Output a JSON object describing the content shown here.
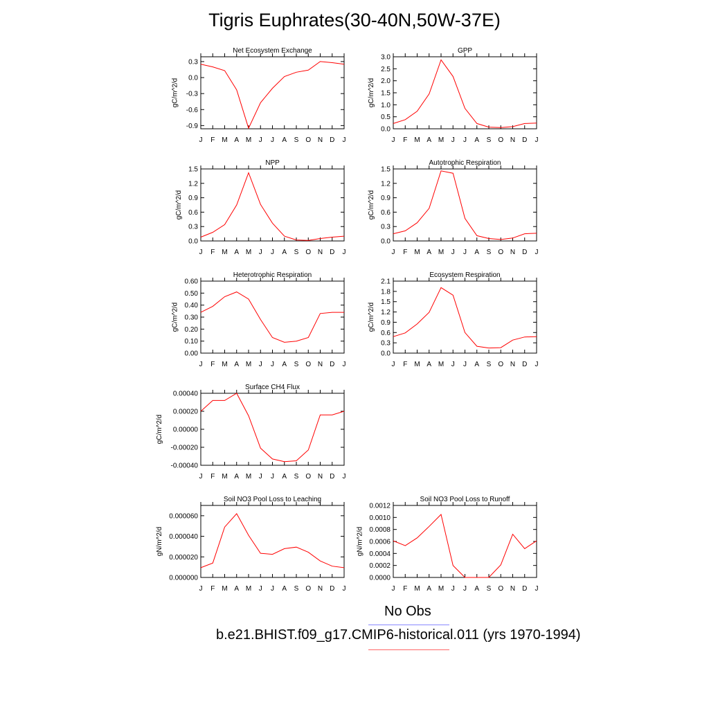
{
  "title": "Tigris Euphrates(30-40N,50W-37E)",
  "months": [
    "J",
    "F",
    "M",
    "A",
    "M",
    "J",
    "J",
    "A",
    "S",
    "O",
    "N",
    "D",
    "J"
  ],
  "line_color": "#ff0000",
  "legend": [
    {
      "label": "No Obs",
      "color": "#8888ff"
    },
    {
      "label": "b.e21.BHIST.f09_g17.CMIP6-historical.011 (yrs 1970-1994)",
      "color": "#ff6666"
    }
  ],
  "chart_data": [
    {
      "type": "line",
      "title": "Net Ecosystem Exchange",
      "ylabel": "gC/m^2/d",
      "ylim": [
        -0.96,
        0.39
      ],
      "yticks": [
        "0.3",
        "0.0",
        "-0.3",
        "-0.6",
        "-0.9"
      ],
      "ytick_values": [
        0.3,
        0.0,
        -0.3,
        -0.6,
        -0.9
      ],
      "values": [
        0.25,
        0.2,
        0.13,
        -0.23,
        -0.95,
        -0.47,
        -0.2,
        0.02,
        0.1,
        0.14,
        0.3,
        0.28,
        0.25
      ]
    },
    {
      "type": "line",
      "title": "GPP",
      "ylabel": "gC/m^2/d",
      "ylim": [
        0,
        3.0
      ],
      "yticks": [
        "3.0",
        "2.5",
        "2.0",
        "1.5",
        "1.0",
        "0.5",
        "0.0"
      ],
      "ytick_values": [
        3.0,
        2.5,
        2.0,
        1.5,
        1.0,
        0.5,
        0.0
      ],
      "values": [
        0.22,
        0.38,
        0.73,
        1.45,
        2.87,
        2.18,
        0.85,
        0.22,
        0.07,
        0.05,
        0.09,
        0.22,
        0.24
      ]
    },
    {
      "type": "line",
      "title": "NPP",
      "ylabel": "gC/m^2/d",
      "ylim": [
        0,
        1.5
      ],
      "yticks": [
        "1.5",
        "1.2",
        "0.9",
        "0.6",
        "0.3",
        "0.0"
      ],
      "ytick_values": [
        1.5,
        1.2,
        0.9,
        0.6,
        0.3,
        0.0
      ],
      "values": [
        0.08,
        0.18,
        0.34,
        0.75,
        1.42,
        0.76,
        0.37,
        0.1,
        0.02,
        0.01,
        0.05,
        0.08,
        0.1
      ]
    },
    {
      "type": "line",
      "title": "Autotrophic Respiration",
      "ylabel": "gC/m^2/d",
      "ylim": [
        0,
        1.5
      ],
      "yticks": [
        "1.5",
        "1.2",
        "0.9",
        "0.6",
        "0.3",
        "0.0"
      ],
      "ytick_values": [
        1.5,
        1.2,
        0.9,
        0.6,
        0.3,
        0.0
      ],
      "values": [
        0.15,
        0.21,
        0.38,
        0.68,
        1.46,
        1.41,
        0.47,
        0.11,
        0.05,
        0.03,
        0.06,
        0.15,
        0.16
      ]
    },
    {
      "type": "line",
      "title": "Heterotrophic Respiration",
      "ylabel": "gC/m^2/d",
      "ylim": [
        0,
        0.6
      ],
      "yticks": [
        "0.60",
        "0.50",
        "0.40",
        "0.30",
        "0.20",
        "0.10",
        "0.00"
      ],
      "ytick_values": [
        0.6,
        0.5,
        0.4,
        0.3,
        0.2,
        0.1,
        0.0
      ],
      "values": [
        0.34,
        0.39,
        0.47,
        0.51,
        0.45,
        0.28,
        0.13,
        0.09,
        0.1,
        0.13,
        0.33,
        0.34,
        0.34
      ]
    },
    {
      "type": "line",
      "title": "Ecosystem Respiration",
      "ylabel": "gC/m^2/d",
      "ylim": [
        0,
        2.1
      ],
      "yticks": [
        "2.1",
        "1.8",
        "1.5",
        "1.2",
        "0.9",
        "0.6",
        "0.3",
        "0.0"
      ],
      "ytick_values": [
        2.1,
        1.8,
        1.5,
        1.2,
        0.9,
        0.6,
        0.3,
        0.0
      ],
      "values": [
        0.48,
        0.59,
        0.85,
        1.19,
        1.91,
        1.69,
        0.6,
        0.2,
        0.15,
        0.16,
        0.38,
        0.47,
        0.48
      ]
    },
    {
      "type": "line",
      "title": "Surface CH4 Flux",
      "ylabel": "gC/m^2/d",
      "ylim": [
        -0.0004,
        0.0004
      ],
      "yticks": [
        "0.00040",
        "0.00020",
        "0.00000",
        "-0.00020",
        "-0.00040"
      ],
      "ytick_values": [
        0.0004,
        0.0002,
        0.0,
        -0.0002,
        -0.0004
      ],
      "values": [
        0.0002,
        0.00032,
        0.00032,
        0.0004,
        0.00015,
        -0.00021,
        -0.00033,
        -0.00036,
        -0.00035,
        -0.00023,
        0.00016,
        0.00016,
        0.0002
      ]
    },
    {
      "type": "line",
      "title": "Soil NO3 Pool Loss to Leaching",
      "ylabel": "gN/m^2/d",
      "ylim": [
        0,
        7e-05
      ],
      "yticks": [
        "0.000060",
        "0.000040",
        "0.000020",
        "0.000000"
      ],
      "ytick_values": [
        6e-05,
        4e-05,
        2e-05,
        0.0
      ],
      "values": [
        9.5e-06,
        1.4e-05,
        4.9e-05,
        6.2e-05,
        4.1e-05,
        2.35e-05,
        2.25e-05,
        2.8e-05,
        2.95e-05,
        2.45e-05,
        1.6e-05,
        1.1e-05,
        9.5e-06
      ]
    },
    {
      "type": "line",
      "title": "Soil NO3 Pool Loss to Runoff",
      "ylabel": "gN/m^2/d",
      "ylim": [
        0,
        0.0012
      ],
      "yticks": [
        "0.0012",
        "0.0010",
        "0.0008",
        "0.0006",
        "0.0004",
        "0.0002",
        "0.0000"
      ],
      "ytick_values": [
        0.0012,
        0.001,
        0.0008,
        0.0006,
        0.0004,
        0.0002,
        0.0
      ],
      "values": [
        0.00061,
        0.00053,
        0.00066,
        0.00085,
        0.00105,
        0.0002,
        0.0,
        0.0,
        0.0,
        0.00021,
        0.00072,
        0.00048,
        0.00061
      ]
    }
  ]
}
